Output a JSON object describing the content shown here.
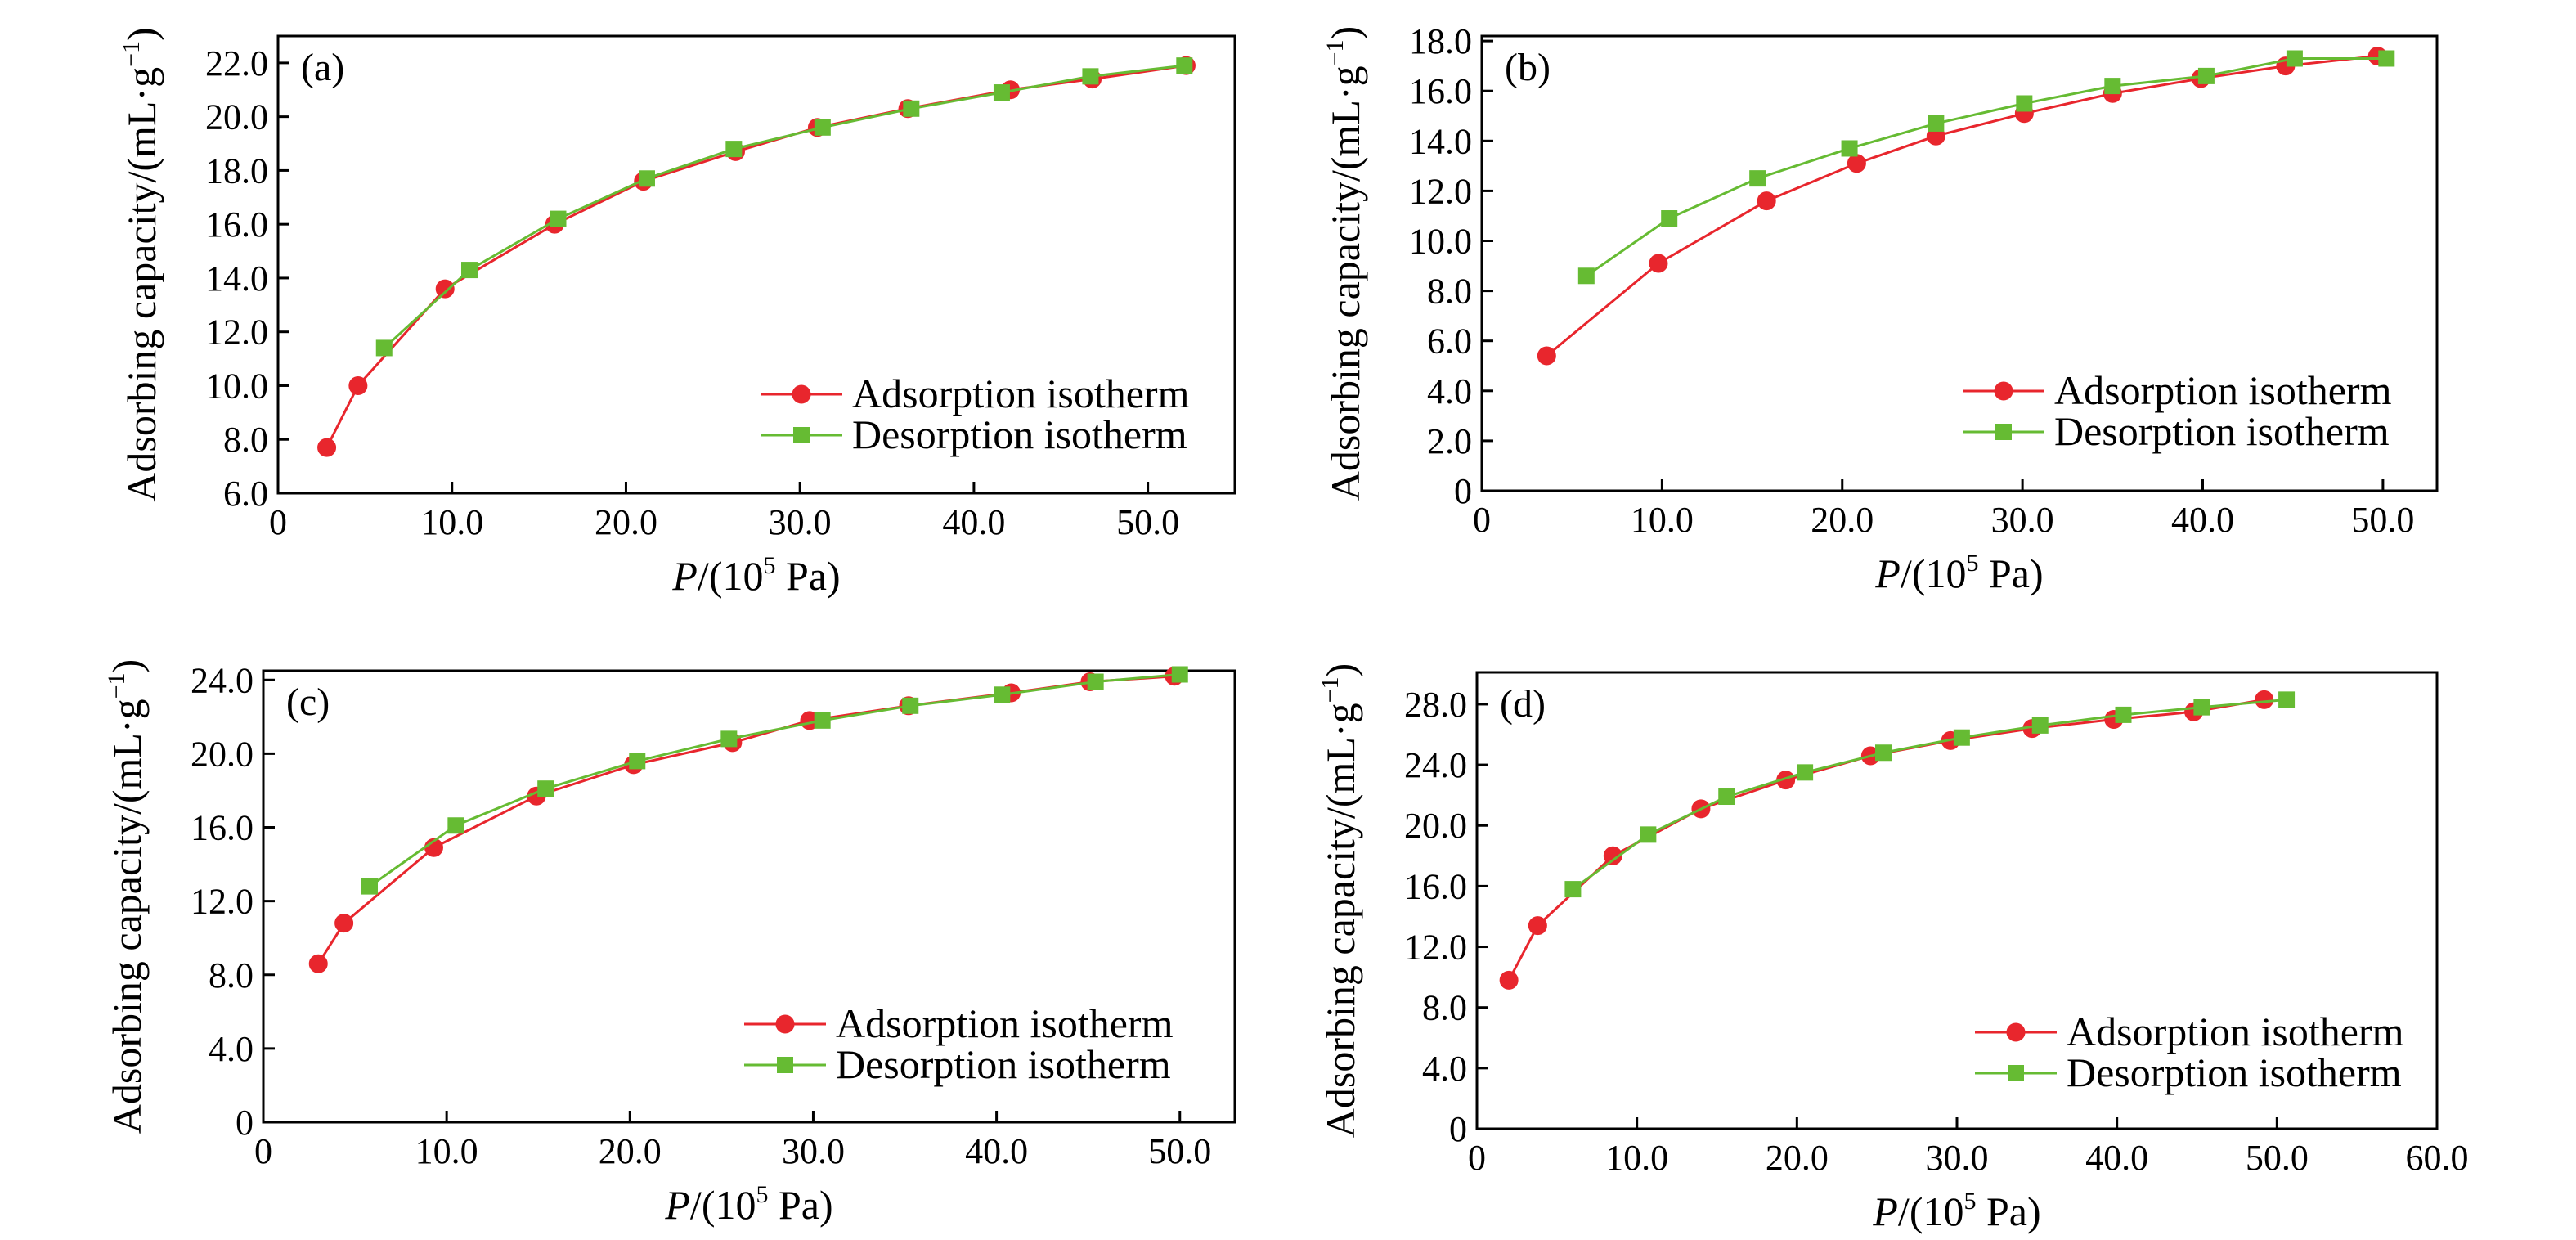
{
  "colors": {
    "adsorption": "#e8262d",
    "desorption": "#66bb33",
    "axis": "#000000"
  },
  "chart_data": [
    {
      "type": "line",
      "panel_label": "(a)",
      "xlabel": {
        "var": "P",
        "rest1": "/(10",
        "sup": "5",
        "rest2": " Pa)"
      },
      "ylabel": {
        "main": "Adsorbing capacity/(mL·g",
        "sup": "−1",
        "close": ")"
      },
      "xlim": [
        0,
        55
      ],
      "ylim": [
        6,
        23
      ],
      "xticks": [
        0,
        10,
        20,
        30,
        40,
        50
      ],
      "xtick_labels": [
        "0",
        "10.0",
        "20.0",
        "30.0",
        "40.0",
        "50.0"
      ],
      "yticks": [
        6,
        8,
        10,
        12,
        14,
        16,
        18,
        20,
        22
      ],
      "ytick_labels": [
        "6.0",
        "8.0",
        "10.0",
        "12.0",
        "14.0",
        "16.0",
        "18.0",
        "20.0",
        "22.0"
      ],
      "legend_position": "lower-right",
      "series": [
        {
          "name": "Adsorption isotherm",
          "marker": "circle",
          "x": [
            2.8,
            4.6,
            9.6,
            15.9,
            21.0,
            26.3,
            31.0,
            36.2,
            42.1,
            46.8,
            52.2
          ],
          "y": [
            7.7,
            10.0,
            13.6,
            16.0,
            17.6,
            18.7,
            19.6,
            20.3,
            21.0,
            21.4,
            21.9
          ]
        },
        {
          "name": "Desorption isotherm",
          "marker": "square",
          "x": [
            6.1,
            11.0,
            16.1,
            21.2,
            26.2,
            31.3,
            36.4,
            41.6,
            46.7,
            52.1
          ],
          "y": [
            11.4,
            14.3,
            16.2,
            17.7,
            18.8,
            19.6,
            20.3,
            20.9,
            21.5,
            21.9
          ]
        }
      ]
    },
    {
      "type": "line",
      "panel_label": "(b)",
      "xlabel": {
        "var": "P",
        "rest1": "/(10",
        "sup": "5",
        "rest2": " Pa)"
      },
      "ylabel": {
        "main": "Adsorbing capacity/(mL·g",
        "sup": "−1",
        "close": ")"
      },
      "xlim": [
        0,
        53
      ],
      "ylim": [
        0,
        18.2
      ],
      "xticks": [
        0,
        10,
        20,
        30,
        40,
        50
      ],
      "xtick_labels": [
        "0",
        "10.0",
        "20.0",
        "30.0",
        "40.0",
        "50.0"
      ],
      "yticks": [
        0,
        2,
        4,
        6,
        8,
        10,
        12,
        14,
        16,
        18
      ],
      "ytick_labels": [
        "0",
        "2.0",
        "4.0",
        "6.0",
        "8.0",
        "10.0",
        "12.0",
        "14.0",
        "16.0",
        "18.0"
      ],
      "legend_position": "lower-right",
      "series": [
        {
          "name": "Adsorption isotherm",
          "marker": "circle",
          "x": [
            3.6,
            9.8,
            15.8,
            20.8,
            25.2,
            30.1,
            35.0,
            39.9,
            44.6,
            49.7
          ],
          "y": [
            5.4,
            9.1,
            11.6,
            13.1,
            14.2,
            15.1,
            15.9,
            16.5,
            17.0,
            17.4
          ]
        },
        {
          "name": "Desorption isotherm",
          "marker": "square",
          "x": [
            5.8,
            10.4,
            15.3,
            20.4,
            25.2,
            30.1,
            35.0,
            40.2,
            45.1,
            50.2
          ],
          "y": [
            8.6,
            10.9,
            12.5,
            13.7,
            14.7,
            15.5,
            16.2,
            16.6,
            17.3,
            17.3
          ]
        }
      ]
    },
    {
      "type": "line",
      "panel_label": "(c)",
      "xlabel": {
        "var": "P",
        "rest1": "/(10",
        "sup": "5",
        "rest2": " Pa)"
      },
      "ylabel": {
        "main": "Adsorbing capacity/(mL·g",
        "sup": "−1",
        "close": ")"
      },
      "xlim": [
        0,
        53
      ],
      "ylim": [
        0,
        24.5
      ],
      "xticks": [
        0,
        10,
        20,
        30,
        40,
        50
      ],
      "xtick_labels": [
        "0",
        "10.0",
        "20.0",
        "30.0",
        "40.0",
        "50.0"
      ],
      "yticks": [
        0,
        4,
        8,
        12,
        16,
        20,
        24
      ],
      "ytick_labels": [
        "0",
        "4.0",
        "8.0",
        "12.0",
        "16.0",
        "20.0",
        "24.0"
      ],
      "legend_position": "lower-right",
      "series": [
        {
          "name": "Adsorption isotherm",
          "marker": "circle",
          "x": [
            3.0,
            4.4,
            9.3,
            14.9,
            20.2,
            25.6,
            29.8,
            35.2,
            40.8,
            45.1,
            49.7
          ],
          "y": [
            8.6,
            10.8,
            14.9,
            17.7,
            19.4,
            20.6,
            21.8,
            22.6,
            23.3,
            23.9,
            24.2
          ]
        },
        {
          "name": "Desorption isotherm",
          "marker": "square",
          "x": [
            5.8,
            10.5,
            15.4,
            20.4,
            25.4,
            30.5,
            35.3,
            40.3,
            45.4,
            50.0
          ],
          "y": [
            12.8,
            16.1,
            18.1,
            19.6,
            20.8,
            21.8,
            22.6,
            23.2,
            23.9,
            24.3
          ]
        }
      ]
    },
    {
      "type": "line",
      "panel_label": "(d)",
      "xlabel": {
        "var": "P",
        "rest1": "/(10",
        "sup": "5",
        "rest2": " Pa)"
      },
      "ylabel": {
        "main": "Adsorbing capacity/(mL·g",
        "sup": "−1",
        "close": ")"
      },
      "xlim": [
        0,
        60
      ],
      "ylim": [
        0,
        30.1
      ],
      "xticks": [
        0,
        10,
        20,
        30,
        40,
        50,
        60
      ],
      "xtick_labels": [
        "0",
        "10.0",
        "20.0",
        "30.0",
        "40.0",
        "50.0",
        "60.0"
      ],
      "yticks": [
        0,
        4,
        8,
        12,
        16,
        20,
        24,
        28
      ],
      "ytick_labels": [
        "0",
        "4.0",
        "8.0",
        "12.0",
        "16.0",
        "20.0",
        "24.0",
        "28.0"
      ],
      "legend_position": "lower-right",
      "series": [
        {
          "name": "Adsorption isotherm",
          "marker": "circle",
          "x": [
            2.0,
            3.8,
            8.5,
            14.0,
            19.3,
            24.6,
            29.6,
            34.7,
            39.8,
            44.8,
            49.2
          ],
          "y": [
            9.8,
            13.4,
            18.0,
            21.1,
            23.0,
            24.6,
            25.6,
            26.4,
            27.0,
            27.5,
            28.3
          ]
        },
        {
          "name": "Desorption isotherm",
          "marker": "square",
          "x": [
            6.0,
            10.7,
            15.6,
            20.5,
            25.4,
            30.3,
            35.2,
            40.4,
            45.3,
            50.6
          ],
          "y": [
            15.8,
            19.4,
            21.9,
            23.5,
            24.8,
            25.8,
            26.6,
            27.3,
            27.8,
            28.3
          ]
        }
      ]
    }
  ]
}
